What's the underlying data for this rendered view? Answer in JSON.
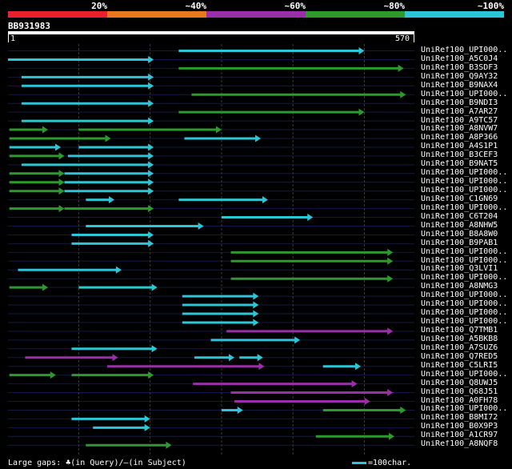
{
  "legend": [
    {
      "label": "20%",
      "color": "#e8202f"
    },
    {
      "label": "~40%",
      "color": "#e87a1c"
    },
    {
      "label": "~60%",
      "color": "#9b2fa9"
    },
    {
      "label": "~80%",
      "color": "#2c9a2c"
    },
    {
      "label": "~100%",
      "color": "#2dc6d6"
    }
  ],
  "query": {
    "name": "BB931983",
    "start": "1",
    "end": "570",
    "length": 570
  },
  "colors": {
    "cyan": "#2dc6d6",
    "green": "#2c9a2c",
    "purple": "#9b2fa9"
  },
  "hits": [
    {
      "name": "UniRef100_UPI000..",
      "segments": [
        {
          "from": 240,
          "to": 500,
          "color": "cyan"
        }
      ]
    },
    {
      "name": "UniRef100_A5C0J4",
      "segments": [
        {
          "from": 1,
          "to": 205,
          "color": "cyan"
        }
      ]
    },
    {
      "name": "UniRef100_B3SDF3",
      "segments": [
        {
          "from": 240,
          "to": 555,
          "color": "green"
        }
      ]
    },
    {
      "name": "UniRef100_Q9AY32",
      "segments": [
        {
          "from": 20,
          "to": 205,
          "color": "cyan"
        }
      ]
    },
    {
      "name": "UniRef100_B9NAX4",
      "segments": [
        {
          "from": 20,
          "to": 205,
          "color": "cyan"
        }
      ]
    },
    {
      "name": "UniRef100_UPI000..",
      "segments": [
        {
          "from": 258,
          "to": 558,
          "color": "green"
        }
      ]
    },
    {
      "name": "UniRef100_B9NDI3",
      "segments": [
        {
          "from": 20,
          "to": 205,
          "color": "cyan"
        }
      ]
    },
    {
      "name": "UniRef100_A7AR27",
      "segments": [
        {
          "from": 240,
          "to": 500,
          "color": "green"
        }
      ]
    },
    {
      "name": "UniRef100_A9TC57",
      "segments": [
        {
          "from": 20,
          "to": 205,
          "color": "cyan"
        }
      ]
    },
    {
      "name": "UniRef100_A8NVW7",
      "segments": [
        {
          "from": 3,
          "to": 57,
          "color": "green"
        },
        {
          "from": 100,
          "to": 300,
          "color": "green"
        }
      ]
    },
    {
      "name": "UniRef100_A8P366",
      "segments": [
        {
          "from": 3,
          "to": 145,
          "color": "green"
        },
        {
          "from": 248,
          "to": 355,
          "color": "cyan"
        }
      ]
    },
    {
      "name": "UniRef100_A4S1P1",
      "segments": [
        {
          "from": 3,
          "to": 75,
          "color": "cyan"
        },
        {
          "from": 100,
          "to": 205,
          "color": "cyan"
        }
      ]
    },
    {
      "name": "UniRef100_B3CEF3",
      "segments": [
        {
          "from": 3,
          "to": 80,
          "color": "green"
        },
        {
          "from": 85,
          "to": 205,
          "color": "cyan"
        }
      ]
    },
    {
      "name": "UniRef100_B9NAT5",
      "segments": [
        {
          "from": 20,
          "to": 205,
          "color": "cyan"
        }
      ]
    },
    {
      "name": "UniRef100_UPI000..",
      "segments": [
        {
          "from": 3,
          "to": 80,
          "color": "green"
        },
        {
          "from": 80,
          "to": 205,
          "color": "cyan"
        }
      ]
    },
    {
      "name": "UniRef100_UPI000..",
      "segments": [
        {
          "from": 3,
          "to": 80,
          "color": "green"
        },
        {
          "from": 80,
          "to": 205,
          "color": "cyan"
        }
      ]
    },
    {
      "name": "UniRef100_UPI000..",
      "segments": [
        {
          "from": 3,
          "to": 80,
          "color": "green"
        },
        {
          "from": 80,
          "to": 205,
          "color": "cyan"
        }
      ]
    },
    {
      "name": "UniRef100_C1GN69",
      "segments": [
        {
          "from": 110,
          "to": 150,
          "color": "cyan"
        },
        {
          "from": 240,
          "to": 365,
          "color": "cyan"
        }
      ]
    },
    {
      "name": "UniRef100_UPI000..",
      "segments": [
        {
          "from": 3,
          "to": 80,
          "color": "green"
        },
        {
          "from": 80,
          "to": 205,
          "color": "green"
        }
      ]
    },
    {
      "name": "UniRef100_C6T204",
      "segments": [
        {
          "from": 300,
          "to": 428,
          "color": "cyan"
        }
      ]
    },
    {
      "name": "UniRef100_A8NHW5",
      "segments": [
        {
          "from": 110,
          "to": 275,
          "color": "cyan"
        }
      ]
    },
    {
      "name": "UniRef100_B8A8W0",
      "segments": [
        {
          "from": 90,
          "to": 205,
          "color": "cyan"
        }
      ]
    },
    {
      "name": "UniRef100_B9PAB1",
      "segments": [
        {
          "from": 90,
          "to": 205,
          "color": "cyan"
        }
      ]
    },
    {
      "name": "UniRef100_UPI000..",
      "segments": [
        {
          "from": 313,
          "to": 540,
          "color": "green"
        }
      ]
    },
    {
      "name": "UniRef100_UPI000..",
      "segments": [
        {
          "from": 313,
          "to": 540,
          "color": "green"
        }
      ]
    },
    {
      "name": "UniRef100_Q3LVI1",
      "segments": [
        {
          "from": 15,
          "to": 160,
          "color": "cyan"
        }
      ]
    },
    {
      "name": "UniRef100_UPI000..",
      "segments": [
        {
          "from": 313,
          "to": 540,
          "color": "green"
        }
      ]
    },
    {
      "name": "UniRef100_A8NMG3",
      "segments": [
        {
          "from": 3,
          "to": 57,
          "color": "green"
        },
        {
          "from": 100,
          "to": 210,
          "color": "cyan"
        }
      ]
    },
    {
      "name": "UniRef100_UPI000..",
      "segments": [
        {
          "from": 245,
          "to": 352,
          "color": "cyan"
        }
      ]
    },
    {
      "name": "UniRef100_UPI000..",
      "segments": [
        {
          "from": 245,
          "to": 352,
          "color": "cyan"
        }
      ]
    },
    {
      "name": "UniRef100_UPI000..",
      "segments": [
        {
          "from": 245,
          "to": 352,
          "color": "cyan"
        }
      ]
    },
    {
      "name": "UniRef100_UPI000..",
      "segments": [
        {
          "from": 245,
          "to": 352,
          "color": "cyan"
        }
      ]
    },
    {
      "name": "UniRef100_Q7TMB1",
      "segments": [
        {
          "from": 307,
          "to": 540,
          "color": "purple"
        }
      ]
    },
    {
      "name": "UniRef100_A5BKB8",
      "segments": [
        {
          "from": 285,
          "to": 410,
          "color": "cyan"
        }
      ]
    },
    {
      "name": "UniRef100_A7SUZ6",
      "segments": [
        {
          "from": 90,
          "to": 210,
          "color": "cyan"
        }
      ]
    },
    {
      "name": "UniRef100_Q7RED5",
      "segments": [
        {
          "from": 25,
          "to": 155,
          "color": "purple"
        },
        {
          "from": 262,
          "to": 318,
          "color": "cyan"
        },
        {
          "from": 325,
          "to": 358,
          "color": "cyan"
        }
      ]
    },
    {
      "name": "UniRef100_C5LRI5",
      "segments": [
        {
          "from": 140,
          "to": 360,
          "color": "purple"
        },
        {
          "from": 442,
          "to": 495,
          "color": "cyan"
        }
      ]
    },
    {
      "name": "UniRef100_UPI000..",
      "segments": [
        {
          "from": 3,
          "to": 68,
          "color": "green"
        },
        {
          "from": 90,
          "to": 205,
          "color": "green"
        }
      ]
    },
    {
      "name": "UniRef100_Q8UWJ5",
      "segments": [
        {
          "from": 260,
          "to": 490,
          "color": "purple"
        }
      ]
    },
    {
      "name": "UniRef100_Q68J51",
      "segments": [
        {
          "from": 313,
          "to": 540,
          "color": "purple"
        }
      ]
    },
    {
      "name": "UniRef100_A0FH78",
      "segments": [
        {
          "from": 318,
          "to": 508,
          "color": "purple"
        }
      ]
    },
    {
      "name": "UniRef100_UPI000..",
      "segments": [
        {
          "from": 300,
          "to": 330,
          "color": "cyan"
        },
        {
          "from": 442,
          "to": 558,
          "color": "green"
        }
      ]
    },
    {
      "name": "UniRef100_B8MI72",
      "segments": [
        {
          "from": 90,
          "to": 200,
          "color": "cyan"
        }
      ]
    },
    {
      "name": "UniRef100_B0X9P3",
      "segments": [
        {
          "from": 120,
          "to": 200,
          "color": "cyan"
        }
      ]
    },
    {
      "name": "UniRef100_A1CR97",
      "segments": [
        {
          "from": 432,
          "to": 542,
          "color": "green"
        }
      ]
    },
    {
      "name": "UniRef100_A8NQF8",
      "segments": [
        {
          "from": 110,
          "to": 230,
          "color": "green"
        }
      ]
    }
  ],
  "footer": {
    "gaps_text": "Large gaps: ♣(in Query)/—(in Subject)",
    "scale_text": "=100char."
  }
}
